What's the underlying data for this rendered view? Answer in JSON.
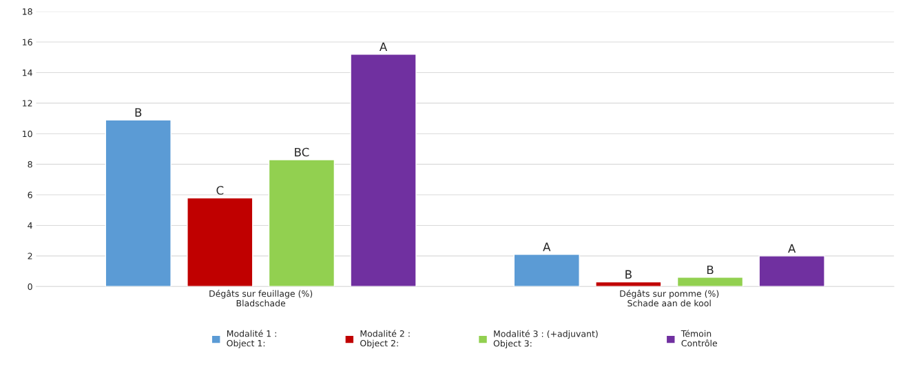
{
  "chart_data": {
    "type": "bar",
    "categories": [
      "Dégâts sur feuillage (%)\nBladschade",
      "Dégâts sur pomme (%)\nSchade aan de kool"
    ],
    "series": [
      {
        "name": "Modalité 1 :\nObject 1:",
        "color": "#5b9bd5",
        "values": [
          10.9,
          2.1
        ],
        "value_labels": [
          "B",
          "A"
        ]
      },
      {
        "name": "Modalité 2 :\nObject 2:",
        "color": "#c00000",
        "values": [
          5.8,
          0.3
        ],
        "value_labels": [
          "C",
          "B"
        ]
      },
      {
        "name": "Modalité 3 : (+adjuvant)\nObject 3:",
        "color": "#92d050",
        "values": [
          8.3,
          0.6
        ],
        "value_labels": [
          "BC",
          "B"
        ]
      },
      {
        "name": "Témoin\nContrôle",
        "color": "#7030a0",
        "values": [
          15.2,
          2.0
        ],
        "value_labels": [
          "A",
          "A"
        ]
      }
    ],
    "ylim": [
      0,
      18
    ],
    "yticks": [
      0,
      2,
      4,
      6,
      8,
      10,
      12,
      14,
      16,
      18
    ],
    "grid": "y",
    "legend": "bottom"
  }
}
